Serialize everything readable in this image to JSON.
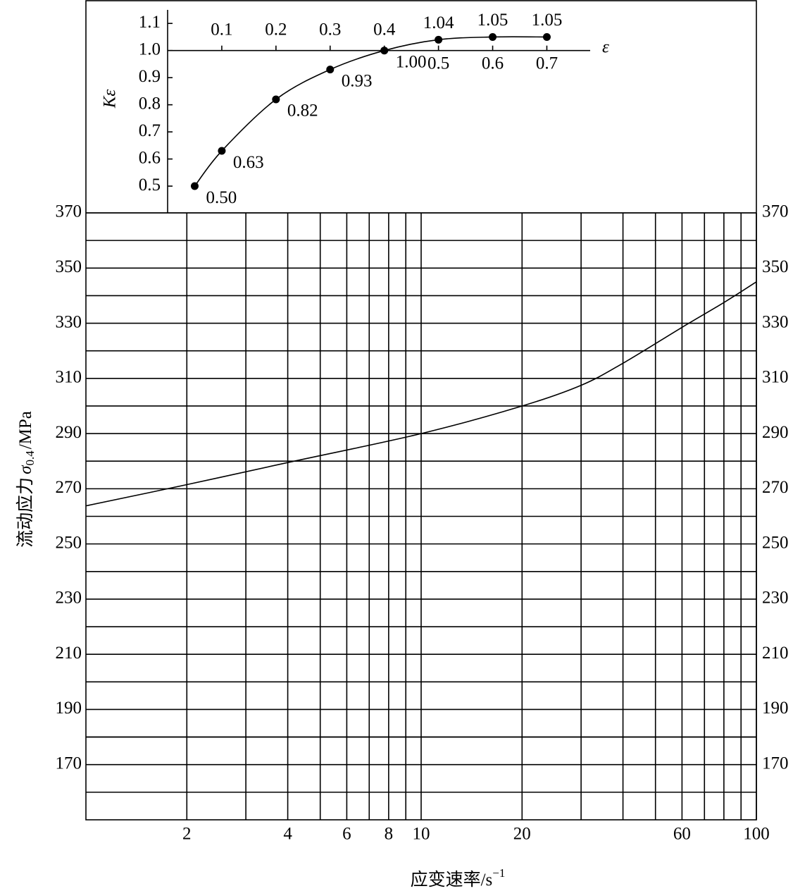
{
  "chart_data": [
    {
      "type": "line",
      "xlabel": "ε",
      "ylabel": "Kε",
      "x": [
        0.05,
        0.1,
        0.2,
        0.3,
        0.4,
        0.5,
        0.6,
        0.7
      ],
      "values": [
        0.5,
        0.63,
        0.82,
        0.93,
        1.0,
        1.04,
        1.05,
        1.05
      ],
      "value_labels": [
        "0.50",
        "0.63",
        "0.82",
        "0.93",
        "1.00",
        "1.04",
        "1.05",
        "1.05"
      ],
      "markers": true,
      "color": "#000000",
      "xlim": [
        0,
        0.78
      ],
      "ylim": [
        0.4,
        1.15
      ],
      "xticks": [
        0.1,
        0.2,
        0.3,
        0.4,
        0.5,
        0.6,
        0.7
      ],
      "yticks": [
        0.5,
        0.6,
        0.7,
        0.8,
        0.9,
        {
          "value": 1.0,
          "label": "1.0"
        },
        1.1
      ]
    },
    {
      "type": "line",
      "xscale": "log",
      "grid": true,
      "color": "#000000",
      "ylabel": "流动应力",
      "ylabel_symbol": "σ",
      "ylabel_sub": "0.4",
      "ylabel_unit": "/MPa",
      "xlabel": "应变速率/s",
      "xlabel_sup": "−1",
      "x": [
        1,
        2,
        4,
        10,
        20,
        30,
        40,
        60,
        80,
        100
      ],
      "values": [
        263.8,
        271.5,
        279.5,
        290,
        300,
        307.5,
        315.5,
        328.5,
        337.5,
        345
      ],
      "xlim": [
        1,
        100
      ],
      "ylim": [
        150,
        370
      ],
      "xticks": [
        2,
        4,
        6,
        8,
        10,
        20,
        60,
        100
      ],
      "yticks": [
        170,
        190,
        210,
        230,
        250,
        270,
        290,
        310,
        330,
        350,
        370
      ]
    }
  ]
}
